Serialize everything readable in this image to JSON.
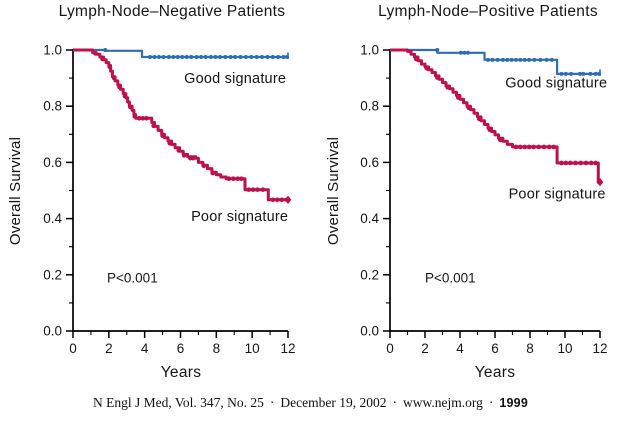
{
  "colors": {
    "good": "#2f6db3",
    "poor": "#c0104a",
    "axis": "#000000",
    "text": "#161616"
  },
  "footer": {
    "citation": "N Engl J Med, Vol. 347, No. 25",
    "sep": "·",
    "date": "December 19, 2002",
    "url": "www.nejm.org",
    "page_number": "1999"
  },
  "chart_data": {
    "type": "line",
    "subtype": "kaplan-meier-step",
    "grid": false,
    "panels": [
      {
        "id": "node-negative",
        "title": "Lymph-Node–Negative Patients",
        "xlabel": "Years",
        "ylabel": "Overall Survival",
        "xlim": [
          0,
          12
        ],
        "ylim": [
          0.0,
          1.0
        ],
        "x_ticks": [
          0,
          2,
          4,
          6,
          8,
          10,
          12
        ],
        "x_minor_ticks": [
          1,
          3,
          5,
          7,
          9,
          11
        ],
        "y_ticks": [
          "1.0",
          "0.8",
          "0.6",
          "0.4",
          "0.2",
          "0.0"
        ],
        "y_minor_ticks": [
          0.9,
          0.7,
          0.5,
          0.3,
          0.1
        ],
        "annotations": [
          {
            "text": "P<0.001",
            "x": 1.9,
            "y": 0.19
          }
        ],
        "series": [
          {
            "name": "Good signature",
            "color_key": "good",
            "line_width": 2.2,
            "label": {
              "text": "Good signature",
              "x": 9.05,
              "y": 0.9
            },
            "end_marker": "tick",
            "points": [
              [
                0,
                1.0
              ],
              [
                1.8,
                1.0
              ],
              [
                1.8,
                0.997
              ],
              [
                3.85,
                0.997
              ],
              [
                3.85,
                0.975
              ],
              [
                12,
                0.975
              ]
            ],
            "censors": [
              [
                1.8,
                1.0
              ],
              [
                4.3,
                0.975
              ],
              [
                4.55,
                0.975
              ],
              [
                4.8,
                0.975
              ],
              [
                5.05,
                0.975
              ],
              [
                5.35,
                0.975
              ],
              [
                5.6,
                0.975
              ],
              [
                5.85,
                0.975
              ],
              [
                6.1,
                0.975
              ],
              [
                6.35,
                0.975
              ],
              [
                6.6,
                0.975
              ],
              [
                6.9,
                0.975
              ],
              [
                7.15,
                0.975
              ],
              [
                7.4,
                0.975
              ],
              [
                7.7,
                0.975
              ],
              [
                7.95,
                0.975
              ],
              [
                8.2,
                0.975
              ],
              [
                8.5,
                0.975
              ],
              [
                8.8,
                0.975
              ],
              [
                9.05,
                0.975
              ],
              [
                9.35,
                0.975
              ],
              [
                9.65,
                0.975
              ],
              [
                9.95,
                0.975
              ],
              [
                10.25,
                0.975
              ],
              [
                10.55,
                0.975
              ],
              [
                10.85,
                0.975
              ],
              [
                11.15,
                0.975
              ],
              [
                11.45,
                0.975
              ],
              [
                11.75,
                0.975
              ],
              [
                11.95,
                0.975
              ]
            ]
          },
          {
            "name": "Poor signature",
            "color_key": "poor",
            "line_width": 3,
            "label": {
              "text": "Poor signature",
              "x": 9.3,
              "y": 0.41
            },
            "end_marker": "diamond",
            "points": [
              [
                0,
                1.0
              ],
              [
                0.95,
                1.0
              ],
              [
                1.1,
                0.99
              ],
              [
                1.3,
                0.985
              ],
              [
                1.5,
                0.975
              ],
              [
                1.7,
                0.965
              ],
              [
                1.85,
                0.955
              ],
              [
                2.0,
                0.945
              ],
              [
                2.1,
                0.925
              ],
              [
                2.2,
                0.905
              ],
              [
                2.35,
                0.89
              ],
              [
                2.5,
                0.875
              ],
              [
                2.65,
                0.86
              ],
              [
                2.8,
                0.845
              ],
              [
                2.95,
                0.83
              ],
              [
                3.05,
                0.815
              ],
              [
                3.15,
                0.8
              ],
              [
                3.3,
                0.785
              ],
              [
                3.4,
                0.77
              ],
              [
                3.5,
                0.757
              ],
              [
                4.25,
                0.757
              ],
              [
                4.4,
                0.742
              ],
              [
                4.55,
                0.728
              ],
              [
                4.75,
                0.714
              ],
              [
                4.95,
                0.7
              ],
              [
                5.1,
                0.688
              ],
              [
                5.3,
                0.676
              ],
              [
                5.5,
                0.664
              ],
              [
                5.7,
                0.652
              ],
              [
                5.95,
                0.64
              ],
              [
                6.15,
                0.628
              ],
              [
                6.4,
                0.62
              ],
              [
                6.85,
                0.615
              ],
              [
                7.0,
                0.6
              ],
              [
                7.25,
                0.59
              ],
              [
                7.5,
                0.578
              ],
              [
                7.75,
                0.565
              ],
              [
                8.0,
                0.556
              ],
              [
                8.25,
                0.548
              ],
              [
                8.55,
                0.542
              ],
              [
                9.6,
                0.542
              ],
              [
                9.6,
                0.503
              ],
              [
                10.9,
                0.503
              ],
              [
                10.9,
                0.467
              ],
              [
                12,
                0.467
              ]
            ],
            "censors": [
              [
                1.25,
                0.988
              ],
              [
                1.65,
                0.968
              ],
              [
                2.05,
                0.94
              ],
              [
                2.3,
                0.9
              ],
              [
                2.6,
                0.868
              ],
              [
                2.9,
                0.836
              ],
              [
                3.2,
                0.797
              ],
              [
                3.45,
                0.764
              ],
              [
                3.7,
                0.757
              ],
              [
                3.9,
                0.757
              ],
              [
                4.1,
                0.757
              ],
              [
                4.5,
                0.73
              ],
              [
                5.0,
                0.695
              ],
              [
                5.4,
                0.668
              ],
              [
                5.9,
                0.643
              ],
              [
                6.2,
                0.625
              ],
              [
                6.55,
                0.615
              ],
              [
                6.7,
                0.615
              ],
              [
                7.3,
                0.588
              ],
              [
                7.8,
                0.562
              ],
              [
                8.7,
                0.542
              ],
              [
                8.95,
                0.542
              ],
              [
                9.2,
                0.542
              ],
              [
                9.4,
                0.542
              ],
              [
                9.8,
                0.503
              ],
              [
                10.05,
                0.503
              ],
              [
                10.3,
                0.503
              ],
              [
                10.6,
                0.503
              ],
              [
                11.15,
                0.467
              ],
              [
                11.4,
                0.467
              ],
              [
                11.65,
                0.467
              ],
              [
                11.95,
                0.467
              ]
            ]
          }
        ]
      },
      {
        "id": "node-positive",
        "title": "Lymph-Node–Positive Patients",
        "xlabel": "Years",
        "ylabel": "Overall Survival",
        "xlim": [
          0,
          12
        ],
        "ylim": [
          0.0,
          1.0
        ],
        "x_ticks": [
          0,
          2,
          4,
          6,
          8,
          10,
          12
        ],
        "x_minor_ticks": [
          1,
          3,
          5,
          7,
          9,
          11
        ],
        "y_ticks": [
          "1.0",
          "0.8",
          "0.6",
          "0.4",
          "0.2",
          "0.0"
        ],
        "y_minor_ticks": [
          0.9,
          0.7,
          0.5,
          0.3,
          0.1
        ],
        "annotations": [
          {
            "text": "P<0.001",
            "x": 2.0,
            "y": 0.19
          }
        ],
        "series": [
          {
            "name": "Good signature",
            "color_key": "good",
            "line_width": 2.2,
            "label": {
              "text": "Good signature",
              "x": 9.5,
              "y": 0.885
            },
            "end_marker": "tick",
            "points": [
              [
                0,
                1.0
              ],
              [
                2.7,
                1.0
              ],
              [
                2.7,
                0.99
              ],
              [
                5.4,
                0.99
              ],
              [
                5.4,
                0.965
              ],
              [
                9.55,
                0.965
              ],
              [
                9.55,
                0.915
              ],
              [
                12,
                0.915
              ]
            ],
            "censors": [
              [
                2.7,
                1.0
              ],
              [
                4.05,
                0.99
              ],
              [
                4.25,
                0.99
              ],
              [
                4.45,
                0.99
              ],
              [
                5.6,
                0.965
              ],
              [
                5.85,
                0.965
              ],
              [
                6.15,
                0.965
              ],
              [
                6.45,
                0.965
              ],
              [
                6.7,
                0.965
              ],
              [
                6.95,
                0.965
              ],
              [
                7.2,
                0.965
              ],
              [
                7.45,
                0.965
              ],
              [
                7.7,
                0.965
              ],
              [
                7.95,
                0.965
              ],
              [
                8.25,
                0.965
              ],
              [
                8.6,
                0.965
              ],
              [
                8.95,
                0.965
              ],
              [
                9.25,
                0.965
              ],
              [
                9.8,
                0.915
              ],
              [
                10.05,
                0.915
              ],
              [
                10.35,
                0.915
              ],
              [
                10.85,
                0.915
              ],
              [
                11.05,
                0.915
              ],
              [
                11.45,
                0.915
              ],
              [
                11.75,
                0.915
              ],
              [
                11.95,
                0.915
              ]
            ]
          },
          {
            "name": "Poor signature",
            "color_key": "poor",
            "line_width": 3,
            "label": {
              "text": "Poor signature",
              "x": 9.55,
              "y": 0.49
            },
            "end_marker": "diamond",
            "points": [
              [
                0,
                1.0
              ],
              [
                0.85,
                1.0
              ],
              [
                1.0,
                0.995
              ],
              [
                1.2,
                0.985
              ],
              [
                1.4,
                0.975
              ],
              [
                1.6,
                0.962
              ],
              [
                1.8,
                0.95
              ],
              [
                2.0,
                0.94
              ],
              [
                2.2,
                0.93
              ],
              [
                2.4,
                0.92
              ],
              [
                2.6,
                0.908
              ],
              [
                2.8,
                0.896
              ],
              [
                3.0,
                0.884
              ],
              [
                3.2,
                0.872
              ],
              [
                3.4,
                0.862
              ],
              [
                3.6,
                0.85
              ],
              [
                3.8,
                0.838
              ],
              [
                4.0,
                0.825
              ],
              [
                4.2,
                0.812
              ],
              [
                4.4,
                0.8
              ],
              [
                4.6,
                0.788
              ],
              [
                4.8,
                0.775
              ],
              [
                5.0,
                0.762
              ],
              [
                5.2,
                0.748
              ],
              [
                5.4,
                0.735
              ],
              [
                5.6,
                0.722
              ],
              [
                5.8,
                0.71
              ],
              [
                6.0,
                0.698
              ],
              [
                6.2,
                0.686
              ],
              [
                6.45,
                0.675
              ],
              [
                6.7,
                0.664
              ],
              [
                7.0,
                0.655
              ],
              [
                9.55,
                0.655
              ],
              [
                9.55,
                0.598
              ],
              [
                11.9,
                0.598
              ],
              [
                11.9,
                0.53
              ],
              [
                12,
                0.53
              ]
            ],
            "censors": [
              [
                1.5,
                0.968
              ],
              [
                2.1,
                0.935
              ],
              [
                2.7,
                0.902
              ],
              [
                3.3,
                0.867
              ],
              [
                3.9,
                0.831
              ],
              [
                4.5,
                0.794
              ],
              [
                5.1,
                0.755
              ],
              [
                5.7,
                0.716
              ],
              [
                6.3,
                0.68
              ],
              [
                7.2,
                0.655
              ],
              [
                7.45,
                0.655
              ],
              [
                7.7,
                0.655
              ],
              [
                7.95,
                0.655
              ],
              [
                8.2,
                0.655
              ],
              [
                8.5,
                0.655
              ],
              [
                8.8,
                0.655
              ],
              [
                9.1,
                0.655
              ],
              [
                9.35,
                0.655
              ],
              [
                9.8,
                0.598
              ],
              [
                10.05,
                0.598
              ],
              [
                10.3,
                0.598
              ],
              [
                10.6,
                0.598
              ],
              [
                10.9,
                0.598
              ],
              [
                11.2,
                0.598
              ],
              [
                11.5,
                0.598
              ],
              [
                11.75,
                0.598
              ],
              [
                11.95,
                0.53
              ]
            ]
          }
        ]
      }
    ]
  }
}
